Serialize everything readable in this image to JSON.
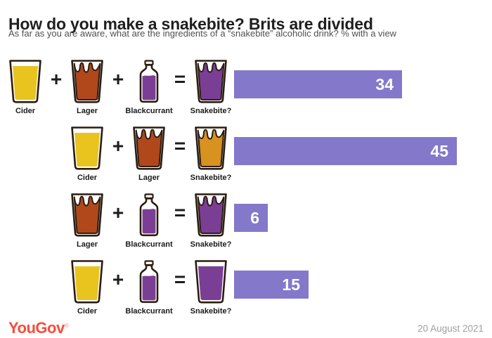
{
  "header": {
    "title": "How do you make a snakebite? Brits are divided",
    "subtitle": "As far as you are aware, what are the ingredients of a “snakebite” alcoholic drink? % with a view"
  },
  "chart_data": {
    "type": "bar",
    "title": "How do you make a snakebite? Brits are divided",
    "subtitle": "As far as you are aware, what are the ingredients of a “snakebite” alcoholic drink? % with a view",
    "categories": [
      "Cider + Lager + Blackcurrant = Snakebite?",
      "Cider + Lager = Snakebite?",
      "Lager + Blackcurrant = Snakebite?",
      "Cider + Blackcurrant = Snakebite?"
    ],
    "values": [
      34,
      45,
      6,
      15
    ],
    "unit": "% with a view",
    "xlim": [
      0,
      50
    ],
    "bar_color": "#8478cb",
    "legend_position": "none",
    "grid": false
  },
  "operators": {
    "plus": "+",
    "equals": "="
  },
  "colors": {
    "bar": "#8478cb",
    "cider": "#e9c41f",
    "lager": "#b0481c",
    "blackcurrant": "#7b3e95",
    "snakebite_purple": "#7b3e95",
    "snakebite_amber": "#d8921f",
    "outline": "#2b1d12",
    "logo_red": "#fa4b3c"
  },
  "rows": [
    {
      "ingredients": [
        {
          "icon": "pint-plain",
          "fill": "#e9c41f",
          "label": "Cider"
        },
        {
          "icon": "pint-foam",
          "fill": "#b0481c",
          "label": "Lager"
        },
        {
          "icon": "bottle",
          "fill": "#7b3e95",
          "label": "Blackcurrant"
        }
      ],
      "result": {
        "icon": "pint-foam",
        "fill": "#7b3e95",
        "label": "Snakebite?"
      },
      "value": 34
    },
    {
      "ingredients": [
        {
          "icon": "pint-plain",
          "fill": "#e9c41f",
          "label": "Cider"
        },
        {
          "icon": "pint-foam",
          "fill": "#b0481c",
          "label": "Lager"
        }
      ],
      "result": {
        "icon": "pint-foam",
        "fill": "#d8921f",
        "label": "Snakebite?"
      },
      "value": 45
    },
    {
      "ingredients": [
        {
          "icon": "pint-foam",
          "fill": "#b0481c",
          "label": "Lager"
        },
        {
          "icon": "bottle",
          "fill": "#7b3e95",
          "label": "Blackcurrant"
        }
      ],
      "result": {
        "icon": "pint-foam",
        "fill": "#7b3e95",
        "label": "Snakebite?"
      },
      "value": 6
    },
    {
      "ingredients": [
        {
          "icon": "pint-plain",
          "fill": "#e9c41f",
          "label": "Cider"
        },
        {
          "icon": "bottle",
          "fill": "#7b3e95",
          "label": "Blackcurrant"
        }
      ],
      "result": {
        "icon": "pint-plain",
        "fill": "#7b3e95",
        "label": "Snakebite?"
      },
      "value": 15
    }
  ],
  "footer": {
    "logo": "YouGov",
    "logo_mark": "®",
    "date": "20 August 2021"
  }
}
